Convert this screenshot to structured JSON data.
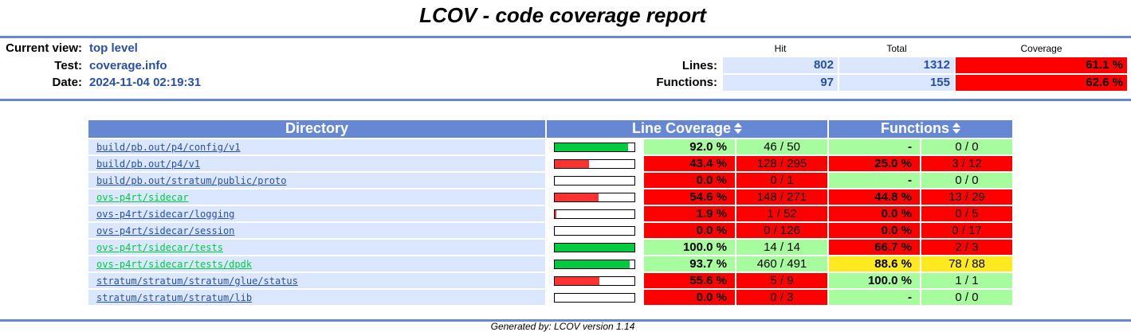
{
  "title": "LCOV - code coverage report",
  "info": {
    "current_view_label": "Current view:",
    "current_view_value": "top level",
    "test_label": "Test:",
    "test_value": "coverage.info",
    "date_label": "Date:",
    "date_value": "2024-11-04 02:19:31"
  },
  "summary": {
    "col_hit": "Hit",
    "col_total": "Total",
    "col_coverage": "Coverage",
    "lines_label": "Lines:",
    "lines_hit": "802",
    "lines_total": "1312",
    "lines_coverage": "61.1 %",
    "functions_label": "Functions:",
    "functions_hit": "97",
    "functions_total": "155",
    "functions_coverage": "62.6 %"
  },
  "table": {
    "col_directory": "Directory",
    "col_line_coverage": "Line Coverage",
    "col_functions": "Functions",
    "rows": [
      {
        "dir": "build/pb.out/p4/config/v1",
        "link_color": "blue",
        "line_pct": "92.0 %",
        "line_frac": 0.92,
        "line_cnt": "46 / 50",
        "line_level": "hi",
        "fn_pct": "-",
        "fn_cnt": "0 / 0",
        "fn_level": "hi"
      },
      {
        "dir": "build/pb.out/p4/v1",
        "link_color": "blue",
        "line_pct": "43.4 %",
        "line_frac": 0.434,
        "line_cnt": "128 / 295",
        "line_level": "lo",
        "fn_pct": "25.0 %",
        "fn_cnt": "3 / 12",
        "fn_level": "lo"
      },
      {
        "dir": "build/pb.out/stratum/public/proto",
        "link_color": "blue",
        "line_pct": "0.0 %",
        "line_frac": 0.0,
        "line_cnt": "0 / 1",
        "line_level": "lo",
        "fn_pct": "-",
        "fn_cnt": "0 / 0",
        "fn_level": "hi"
      },
      {
        "dir": "ovs-p4rt/sidecar",
        "link_color": "green",
        "line_pct": "54.6 %",
        "line_frac": 0.546,
        "line_cnt": "148 / 271",
        "line_level": "lo",
        "fn_pct": "44.8 %",
        "fn_cnt": "13 / 29",
        "fn_level": "lo"
      },
      {
        "dir": "ovs-p4rt/sidecar/logging",
        "link_color": "blue",
        "line_pct": "1.9 %",
        "line_frac": 0.019,
        "line_cnt": "1 / 52",
        "line_level": "lo",
        "fn_pct": "0.0 %",
        "fn_cnt": "0 / 5",
        "fn_level": "lo"
      },
      {
        "dir": "ovs-p4rt/sidecar/session",
        "link_color": "blue",
        "line_pct": "0.0 %",
        "line_frac": 0.0,
        "line_cnt": "0 / 126",
        "line_level": "lo",
        "fn_pct": "0.0 %",
        "fn_cnt": "0 / 17",
        "fn_level": "lo"
      },
      {
        "dir": "ovs-p4rt/sidecar/tests",
        "link_color": "green",
        "line_pct": "100.0 %",
        "line_frac": 1.0,
        "line_cnt": "14 / 14",
        "line_level": "hi",
        "fn_pct": "66.7 %",
        "fn_cnt": "2 / 3",
        "fn_level": "lo"
      },
      {
        "dir": "ovs-p4rt/sidecar/tests/dpdk",
        "link_color": "green",
        "line_pct": "93.7 %",
        "line_frac": 0.937,
        "line_cnt": "460 / 491",
        "line_level": "hi",
        "fn_pct": "88.6 %",
        "fn_cnt": "78 / 88",
        "fn_level": "med"
      },
      {
        "dir": "stratum/stratum/stratum/glue/status",
        "link_color": "blue",
        "line_pct": "55.6 %",
        "line_frac": 0.556,
        "line_cnt": "5 / 9",
        "line_level": "lo",
        "fn_pct": "100.0 %",
        "fn_cnt": "1 / 1",
        "fn_level": "hi"
      },
      {
        "dir": "stratum/stratum/stratum/lib",
        "link_color": "blue",
        "line_pct": "0.0 %",
        "line_frac": 0.0,
        "line_cnt": "0 / 3",
        "line_level": "lo",
        "fn_pct": "-",
        "fn_cnt": "0 / 0",
        "fn_level": "hi"
      }
    ]
  },
  "colors": {
    "ruler": "#6688d4",
    "header_bg": "#6688d4",
    "link": "#284fa8",
    "hi": "#a7fc9d",
    "med": "#ffea20",
    "lo": "#ff0000",
    "bar_hi": "#00cb40",
    "bar_lo": "#ff3030"
  },
  "footer": {
    "text": "Generated by: LCOV version 1.14"
  }
}
